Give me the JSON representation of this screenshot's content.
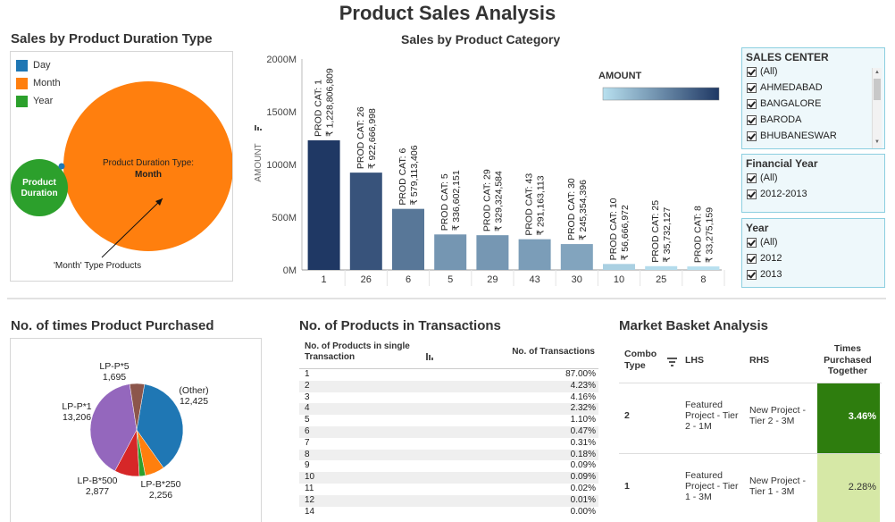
{
  "dashboard_title": "Product Sales Analysis",
  "duration": {
    "title": "Sales by Product Duration Type",
    "legend": [
      {
        "label": "Day",
        "color": "#1f77b4"
      },
      {
        "label": "Month",
        "color": "#ff7f0e"
      },
      {
        "label": "Year",
        "color": "#2ca02c"
      }
    ],
    "small_bubble_label": "Product Duration",
    "big_bubble_label_line1": "Product Duration Type:",
    "big_bubble_label_line2": "Month",
    "annotation": "'Month' Type Products"
  },
  "category": {
    "title": "Sales by Product Category",
    "legend_title": "AMOUNT"
  },
  "chart_data": [
    {
      "type": "bar",
      "title": "Sales by Product Category",
      "xlabel": "",
      "ylabel": "AMOUNT",
      "ylim": [
        0,
        2000000000
      ],
      "y_ticks": [
        "0M",
        "500M",
        "1000M",
        "1500M",
        "2000M"
      ],
      "categories": [
        "1",
        "26",
        "6",
        "5",
        "29",
        "43",
        "30",
        "10",
        "25",
        "8"
      ],
      "values": [
        1228806809,
        922666998,
        579113406,
        336602151,
        329324584,
        291163113,
        245354396,
        56666972,
        35732127,
        33275159
      ],
      "bar_labels_line1": [
        "PROD CAT: 1",
        "PROD CAT: 26",
        "PROD CAT: 6",
        "PROD CAT: 5",
        "PROD CAT: 29",
        "PROD CAT: 43",
        "PROD CAT: 30",
        "PROD CAT: 10",
        "PROD CAT: 25",
        "PROD CAT: 8"
      ],
      "bar_labels_line2": [
        "₹ 1,228,806,809",
        "₹ 922,666,998",
        "₹ 579,113,406",
        "₹ 336,602,151",
        "₹ 329,324,584",
        "₹ 291,163,113",
        "₹ 245,354,396",
        "₹ 56,666,972",
        "₹ 35,732,127",
        "₹ 33,275,159"
      ],
      "color_gradient": [
        "#b8e0ef",
        "#1f3864"
      ],
      "legend_placement": "top-right"
    },
    {
      "type": "pie",
      "title": "No. of times Product Purchased",
      "slices": [
        {
          "label": "(Other)",
          "value": 12425,
          "display": "12,425",
          "color": "#1f77b4"
        },
        {
          "label": "LP-B*250",
          "value": 2256,
          "display": "2,256",
          "color": "#ff7f0e"
        },
        {
          "label": "",
          "value": 700,
          "display": "",
          "color": "#2ca02c"
        },
        {
          "label": "LP-B*500",
          "value": 2877,
          "display": "2,877",
          "color": "#d62728"
        },
        {
          "label": "LP-P*1",
          "value": 13206,
          "display": "13,206",
          "color": "#9467bd"
        },
        {
          "label": "LP-P*5",
          "value": 1695,
          "display": "1,695",
          "color": "#8c564b"
        }
      ]
    },
    {
      "type": "table",
      "title": "No. of Products in Transactions",
      "columns": [
        "No. of Products in single Transaction",
        "No. of  Transactions"
      ],
      "rows": [
        [
          "1",
          "87.00%"
        ],
        [
          "2",
          "4.23%"
        ],
        [
          "3",
          "4.16%"
        ],
        [
          "4",
          "2.32%"
        ],
        [
          "5",
          "1.10%"
        ],
        [
          "6",
          "0.47%"
        ],
        [
          "7",
          "0.31%"
        ],
        [
          "8",
          "0.18%"
        ],
        [
          "9",
          "0.09%"
        ],
        [
          "10",
          "0.09%"
        ],
        [
          "11",
          "0.02%"
        ],
        [
          "12",
          "0.01%"
        ],
        [
          "14",
          "0.00%"
        ]
      ]
    },
    {
      "type": "table",
      "title": "Market Basket Analysis",
      "columns": [
        "Combo Type",
        "LHS",
        "RHS",
        "Times Purchased Together"
      ],
      "rows": [
        {
          "combo": "2",
          "lhs": "Featured Project - Tier 2 - 1M",
          "rhs": "New Project - Tier 2 - 3M",
          "value": "3.46%",
          "color": "#2e7d0e"
        },
        {
          "combo": "1",
          "lhs": "Featured Project - Tier 1 - 3M",
          "rhs": "New Project - Tier 1 - 3M",
          "value": "2.28%",
          "color": "#d6e8a6"
        }
      ]
    }
  ],
  "pie_section_title": "No. of times Product Purchased",
  "txn_title": "No. of Products in Transactions",
  "txn_col1": "No. of Products in single Transaction",
  "txn_col2": "No. of  Transactions",
  "mba_title": "Market Basket Analysis",
  "mba_headers": {
    "combo": "Combo Type",
    "lhs": "LHS",
    "rhs": "RHS",
    "times": "Times Purchased Together"
  },
  "filters": {
    "sales_center": {
      "title": "SALES CENTER",
      "items": [
        "(All)",
        "AHMEDABAD",
        "BANGALORE",
        "BARODA",
        "BHUBANESWAR"
      ]
    },
    "financial_year": {
      "title": "Financial Year",
      "items": [
        "(All)",
        "2012-2013"
      ]
    },
    "year": {
      "title": "Year",
      "items": [
        "(All)",
        "2012",
        "2013"
      ]
    }
  }
}
